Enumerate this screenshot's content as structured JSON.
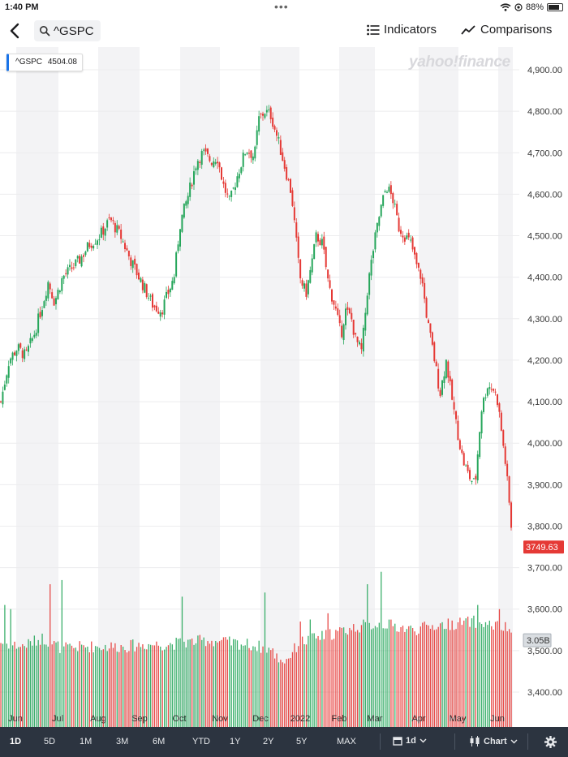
{
  "status": {
    "time": "1:40 PM",
    "dots": "•••",
    "battery": "88%"
  },
  "header": {
    "symbol": "^GSPC",
    "indicators_label": "Indicators",
    "comparisons_label": "Comparisons"
  },
  "tag": {
    "symbol": "^GSPC",
    "value": "4504.08"
  },
  "brand": "yahoo!finance",
  "chart_data": {
    "type": "candlestick",
    "x_labels": [
      "Jun",
      "Jul",
      "Aug",
      "Sep",
      "Oct",
      "Nov",
      "Dec",
      "2022",
      "Feb",
      "Mar",
      "Apr",
      "May",
      "Jun"
    ],
    "y_ticks": [
      "4,900.00",
      "4,800.00",
      "4,700.00",
      "4,600.00",
      "4,500.00",
      "4,400.00",
      "4,300.00",
      "4,200.00",
      "4,100.00",
      "4,000.00",
      "3,900.00",
      "3,800.00",
      "3,700.00",
      "3,600.00",
      "3,500.00",
      "3,400.00"
    ],
    "ylim": [
      3350,
      4950
    ],
    "last_price_label": "3749.63",
    "volume_label": "3.05B",
    "up_color": "#26a65b",
    "down_color": "#e53935",
    "close_anchors": [
      [
        0,
        4100
      ],
      [
        8,
        4200
      ],
      [
        16,
        4230
      ],
      [
        24,
        4210
      ],
      [
        32,
        4260
      ],
      [
        40,
        4330
      ],
      [
        46,
        4390
      ],
      [
        52,
        4340
      ],
      [
        60,
        4400
      ],
      [
        68,
        4420
      ],
      [
        76,
        4440
      ],
      [
        86,
        4480
      ],
      [
        96,
        4500
      ],
      [
        106,
        4540
      ],
      [
        116,
        4500
      ],
      [
        126,
        4440
      ],
      [
        134,
        4400
      ],
      [
        140,
        4370
      ],
      [
        148,
        4330
      ],
      [
        156,
        4320
      ],
      [
        162,
        4360
      ],
      [
        168,
        4400
      ],
      [
        174,
        4530
      ],
      [
        182,
        4600
      ],
      [
        190,
        4680
      ],
      [
        196,
        4700
      ],
      [
        204,
        4680
      ],
      [
        210,
        4690
      ],
      [
        216,
        4620
      ],
      [
        222,
        4580
      ],
      [
        230,
        4650
      ],
      [
        238,
        4710
      ],
      [
        246,
        4690
      ],
      [
        250,
        4780
      ],
      [
        256,
        4800
      ],
      [
        262,
        4790
      ],
      [
        270,
        4720
      ],
      [
        276,
        4660
      ],
      [
        282,
        4600
      ],
      [
        286,
        4500
      ],
      [
        290,
        4400
      ],
      [
        296,
        4360
      ],
      [
        302,
        4440
      ],
      [
        306,
        4500
      ],
      [
        312,
        4480
      ],
      [
        318,
        4380
      ],
      [
        324,
        4330
      ],
      [
        330,
        4260
      ],
      [
        334,
        4320
      ],
      [
        340,
        4300
      ],
      [
        344,
        4250
      ],
      [
        350,
        4220
      ],
      [
        356,
        4380
      ],
      [
        362,
        4480
      ],
      [
        368,
        4560
      ],
      [
        374,
        4620
      ],
      [
        380,
        4590
      ],
      [
        386,
        4520
      ],
      [
        392,
        4500
      ],
      [
        398,
        4480
      ],
      [
        404,
        4420
      ],
      [
        408,
        4400
      ],
      [
        414,
        4290
      ],
      [
        420,
        4210
      ],
      [
        426,
        4120
      ],
      [
        432,
        4200
      ],
      [
        436,
        4130
      ],
      [
        442,
        4040
      ],
      [
        448,
        3960
      ],
      [
        454,
        3920
      ],
      [
        460,
        3900
      ],
      [
        466,
        4080
      ],
      [
        472,
        4140
      ],
      [
        478,
        4130
      ],
      [
        482,
        4100
      ],
      [
        486,
        4020
      ],
      [
        490,
        3940
      ],
      [
        495,
        3800
      ]
    ],
    "volume_anchors": [
      [
        0,
        3520
      ],
      [
        20,
        3510
      ],
      [
        40,
        3530
      ],
      [
        60,
        3505
      ],
      [
        80,
        3510
      ],
      [
        100,
        3510
      ],
      [
        120,
        3510
      ],
      [
        140,
        3515
      ],
      [
        160,
        3515
      ],
      [
        180,
        3520
      ],
      [
        200,
        3525
      ],
      [
        220,
        3520
      ],
      [
        240,
        3515
      ],
      [
        260,
        3505
      ],
      [
        270,
        3480
      ],
      [
        276,
        3475
      ],
      [
        290,
        3520
      ],
      [
        320,
        3540
      ],
      [
        350,
        3560
      ],
      [
        370,
        3565
      ],
      [
        400,
        3550
      ],
      [
        420,
        3560
      ],
      [
        440,
        3565
      ],
      [
        460,
        3570
      ],
      [
        480,
        3560
      ],
      [
        495,
        3550
      ]
    ],
    "volume_spikes": [
      [
        4,
        3610
      ],
      [
        10,
        3600
      ],
      [
        48,
        3660
      ],
      [
        60,
        3670
      ],
      [
        175,
        3630
      ],
      [
        255,
        3640
      ],
      [
        290,
        3570
      ],
      [
        300,
        3575
      ],
      [
        316,
        3590
      ],
      [
        355,
        3660
      ],
      [
        368,
        3690
      ],
      [
        462,
        3610
      ],
      [
        482,
        3600
      ]
    ]
  },
  "ranges": [
    "1D",
    "5D",
    "1M",
    "3M",
    "6M",
    "YTD",
    "1Y",
    "2Y",
    "5Y",
    "MAX"
  ],
  "active_range": "1D",
  "interval_label": "1d",
  "chart_type_label": "Chart",
  "icons": {
    "back": "back-chevron-icon",
    "search": "search-icon",
    "indicators": "list-icon",
    "comparisons": "trend-line-icon",
    "interval": "calendar-icon",
    "chart_type": "candlestick-icon",
    "settings": "gear-icon"
  }
}
